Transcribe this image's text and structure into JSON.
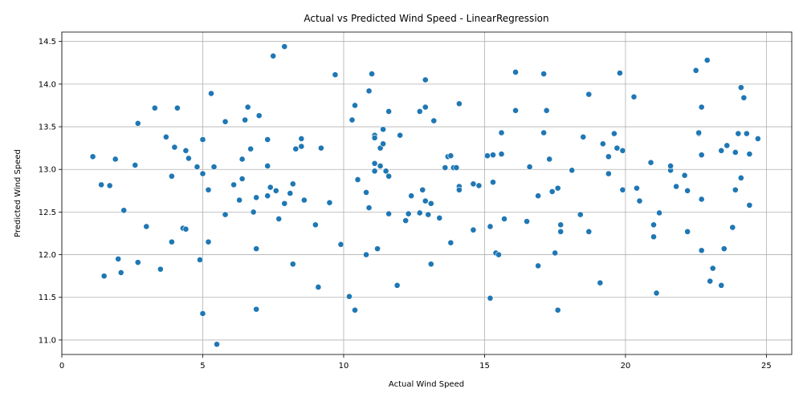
{
  "chart_data": {
    "type": "scatter",
    "title": "Actual vs Predicted Wind Speed - LinearRegression",
    "xlabel": "Actual Wind Speed",
    "ylabel": "Predicted Wind Speed",
    "xlim": [
      0,
      25.9
    ],
    "ylim": [
      10.83,
      14.61
    ],
    "xticks": [
      0,
      5,
      10,
      15,
      20,
      25
    ],
    "yticks": [
      11.0,
      11.5,
      12.0,
      12.5,
      13.0,
      13.5,
      14.0,
      14.5
    ],
    "grid": true,
    "marker_color": "#1f77b4",
    "series": [
      {
        "points": [
          [
            1.1,
            13.15
          ],
          [
            1.4,
            12.82
          ],
          [
            1.5,
            11.75
          ],
          [
            1.7,
            12.81
          ],
          [
            1.9,
            13.12
          ],
          [
            2.0,
            11.95
          ],
          [
            2.1,
            11.79
          ],
          [
            2.2,
            12.52
          ],
          [
            2.6,
            13.05
          ],
          [
            2.7,
            13.54
          ],
          [
            2.7,
            11.91
          ],
          [
            3.0,
            12.33
          ],
          [
            3.3,
            13.72
          ],
          [
            3.5,
            11.83
          ],
          [
            3.7,
            13.38
          ],
          [
            3.9,
            12.15
          ],
          [
            3.9,
            12.92
          ],
          [
            4.0,
            13.26
          ],
          [
            4.1,
            13.72
          ],
          [
            4.3,
            12.31
          ],
          [
            4.4,
            12.3
          ],
          [
            4.4,
            13.22
          ],
          [
            4.5,
            13.13
          ],
          [
            4.8,
            13.03
          ],
          [
            4.9,
            11.94
          ],
          [
            5.0,
            13.35
          ],
          [
            5.0,
            12.95
          ],
          [
            5.0,
            11.31
          ],
          [
            5.2,
            12.76
          ],
          [
            5.2,
            12.15
          ],
          [
            5.3,
            13.89
          ],
          [
            5.4,
            13.03
          ],
          [
            5.5,
            10.95
          ],
          [
            5.8,
            13.56
          ],
          [
            5.8,
            12.47
          ],
          [
            6.1,
            12.82
          ],
          [
            6.3,
            12.64
          ],
          [
            6.4,
            12.89
          ],
          [
            6.4,
            13.12
          ],
          [
            6.5,
            13.58
          ],
          [
            6.6,
            13.73
          ],
          [
            6.7,
            13.24
          ],
          [
            6.8,
            12.5
          ],
          [
            6.9,
            12.07
          ],
          [
            6.9,
            12.67
          ],
          [
            6.9,
            11.36
          ],
          [
            7.0,
            13.63
          ],
          [
            7.3,
            13.35
          ],
          [
            7.3,
            13.04
          ],
          [
            7.3,
            12.69
          ],
          [
            7.4,
            12.79
          ],
          [
            7.5,
            14.33
          ],
          [
            7.6,
            12.75
          ],
          [
            7.7,
            12.42
          ],
          [
            7.9,
            14.44
          ],
          [
            7.9,
            12.6
          ],
          [
            8.1,
            12.72
          ],
          [
            8.2,
            11.89
          ],
          [
            8.2,
            12.83
          ],
          [
            8.3,
            13.24
          ],
          [
            8.5,
            13.36
          ],
          [
            8.5,
            13.27
          ],
          [
            8.6,
            12.64
          ],
          [
            9.0,
            12.35
          ],
          [
            9.1,
            11.62
          ],
          [
            9.2,
            13.25
          ],
          [
            9.5,
            12.61
          ],
          [
            9.7,
            14.11
          ],
          [
            9.9,
            12.12
          ],
          [
            10.2,
            11.51
          ],
          [
            10.3,
            13.58
          ],
          [
            10.4,
            13.75
          ],
          [
            10.4,
            11.35
          ],
          [
            10.5,
            12.88
          ],
          [
            10.8,
            12.0
          ],
          [
            10.8,
            12.73
          ],
          [
            10.9,
            12.55
          ],
          [
            10.9,
            13.92
          ],
          [
            11.0,
            14.12
          ],
          [
            11.1,
            13.4
          ],
          [
            11.1,
            13.37
          ],
          [
            11.1,
            13.07
          ],
          [
            11.1,
            12.98
          ],
          [
            11.2,
            12.07
          ],
          [
            11.3,
            13.04
          ],
          [
            11.3,
            13.25
          ],
          [
            11.4,
            13.47
          ],
          [
            11.4,
            13.3
          ],
          [
            11.5,
            12.98
          ],
          [
            11.6,
            12.92
          ],
          [
            11.6,
            13.68
          ],
          [
            11.6,
            12.48
          ],
          [
            11.9,
            11.64
          ],
          [
            12.0,
            13.4
          ],
          [
            12.2,
            12.4
          ],
          [
            12.3,
            12.48
          ],
          [
            12.4,
            12.69
          ],
          [
            12.7,
            13.68
          ],
          [
            12.7,
            12.49
          ],
          [
            12.8,
            12.76
          ],
          [
            12.9,
            13.73
          ],
          [
            12.9,
            14.05
          ],
          [
            12.9,
            12.63
          ],
          [
            13.0,
            12.47
          ],
          [
            13.1,
            11.89
          ],
          [
            13.1,
            12.6
          ],
          [
            13.2,
            13.57
          ],
          [
            13.4,
            12.43
          ],
          [
            13.6,
            13.02
          ],
          [
            13.7,
            13.15
          ],
          [
            13.8,
            13.16
          ],
          [
            13.8,
            12.14
          ],
          [
            13.9,
            13.02
          ],
          [
            14.0,
            13.02
          ],
          [
            14.1,
            12.8
          ],
          [
            14.1,
            12.76
          ],
          [
            14.1,
            13.77
          ],
          [
            14.6,
            12.83
          ],
          [
            14.6,
            12.29
          ],
          [
            14.8,
            12.81
          ],
          [
            15.1,
            13.16
          ],
          [
            15.2,
            11.49
          ],
          [
            15.2,
            12.33
          ],
          [
            15.3,
            12.85
          ],
          [
            15.3,
            13.17
          ],
          [
            15.4,
            12.02
          ],
          [
            15.5,
            12.0
          ],
          [
            15.6,
            13.43
          ],
          [
            15.6,
            13.18
          ],
          [
            15.7,
            12.42
          ],
          [
            16.1,
            13.69
          ],
          [
            16.1,
            14.14
          ],
          [
            16.5,
            12.39
          ],
          [
            16.6,
            13.03
          ],
          [
            16.9,
            12.69
          ],
          [
            16.9,
            11.87
          ],
          [
            17.1,
            13.43
          ],
          [
            17.1,
            14.12
          ],
          [
            17.2,
            13.69
          ],
          [
            17.3,
            13.12
          ],
          [
            17.4,
            12.74
          ],
          [
            17.5,
            12.02
          ],
          [
            17.6,
            12.78
          ],
          [
            17.6,
            11.35
          ],
          [
            17.7,
            12.35
          ],
          [
            17.7,
            12.27
          ],
          [
            18.1,
            12.99
          ],
          [
            18.4,
            12.47
          ],
          [
            18.5,
            13.38
          ],
          [
            18.7,
            12.27
          ],
          [
            18.7,
            13.88
          ],
          [
            19.1,
            11.67
          ],
          [
            19.2,
            13.3
          ],
          [
            19.4,
            13.15
          ],
          [
            19.4,
            12.95
          ],
          [
            19.6,
            13.42
          ],
          [
            19.7,
            13.25
          ],
          [
            19.8,
            14.13
          ],
          [
            19.9,
            13.22
          ],
          [
            19.9,
            12.76
          ],
          [
            20.3,
            13.85
          ],
          [
            20.4,
            12.78
          ],
          [
            20.5,
            12.63
          ],
          [
            20.9,
            13.08
          ],
          [
            21.0,
            12.21
          ],
          [
            21.0,
            12.35
          ],
          [
            21.1,
            11.55
          ],
          [
            21.2,
            12.49
          ],
          [
            21.6,
            12.99
          ],
          [
            21.6,
            13.04
          ],
          [
            21.8,
            12.8
          ],
          [
            22.1,
            12.93
          ],
          [
            22.2,
            12.75
          ],
          [
            22.2,
            12.27
          ],
          [
            22.5,
            14.16
          ],
          [
            22.6,
            13.42
          ],
          [
            22.6,
            13.43
          ],
          [
            22.7,
            13.73
          ],
          [
            22.7,
            13.17
          ],
          [
            22.7,
            12.65
          ],
          [
            22.7,
            12.05
          ],
          [
            22.9,
            14.28
          ],
          [
            23.0,
            11.69
          ],
          [
            23.1,
            11.84
          ],
          [
            23.4,
            11.64
          ],
          [
            23.4,
            13.22
          ],
          [
            23.5,
            12.07
          ],
          [
            23.6,
            13.28
          ],
          [
            23.8,
            12.32
          ],
          [
            23.9,
            12.76
          ],
          [
            23.9,
            13.2
          ],
          [
            24.0,
            13.42
          ],
          [
            24.1,
            13.96
          ],
          [
            24.1,
            12.9
          ],
          [
            24.2,
            13.84
          ],
          [
            24.3,
            13.42
          ],
          [
            24.4,
            12.58
          ],
          [
            24.4,
            13.18
          ],
          [
            24.7,
            13.36
          ]
        ]
      }
    ]
  }
}
